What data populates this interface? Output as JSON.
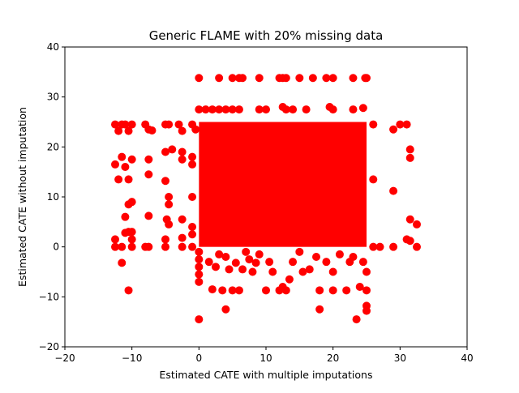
{
  "chart_data": {
    "type": "scatter",
    "title": "Generic FLAME with 20% missing data",
    "xlabel": "Estimated CATE with multiple imputations",
    "ylabel": "Estimated CATE without imputation",
    "xlim": [
      -20,
      40
    ],
    "ylim": [
      -20,
      40
    ],
    "xticks": [
      -20,
      -10,
      0,
      10,
      20,
      30,
      40
    ],
    "yticks": [
      -20,
      -10,
      0,
      10,
      20,
      30,
      40
    ],
    "xtick_labels": [
      "−20",
      "−10",
      "0",
      "10",
      "20",
      "30",
      "40"
    ],
    "ytick_labels": [
      "−20",
      "−10",
      "0",
      "10",
      "20",
      "30",
      "40"
    ],
    "grid": false,
    "legend": "none",
    "marker_color": "#ff0000",
    "dense_region": {
      "x": [
        0,
        25
      ],
      "y": [
        0,
        25
      ]
    },
    "series": [
      {
        "points": [
          [
            0,
            33.8
          ],
          [
            3,
            33.8
          ],
          [
            5,
            33.8
          ],
          [
            6,
            33.8
          ],
          [
            6.5,
            33.8
          ],
          [
            9,
            33.8
          ],
          [
            12,
            33.8
          ],
          [
            12.5,
            33.8
          ],
          [
            13,
            33.8
          ],
          [
            15,
            33.8
          ],
          [
            17,
            33.8
          ],
          [
            19,
            33.8
          ],
          [
            20,
            33.8
          ],
          [
            23,
            33.8
          ],
          [
            24.8,
            33.8
          ],
          [
            25,
            33.8
          ],
          [
            0,
            27.5
          ],
          [
            1,
            27.5
          ],
          [
            2,
            27.5
          ],
          [
            3,
            27.5
          ],
          [
            4,
            27.5
          ],
          [
            5,
            27.5
          ],
          [
            6,
            27.5
          ],
          [
            9,
            27.5
          ],
          [
            10,
            27.5
          ],
          [
            12.5,
            28
          ],
          [
            13,
            27.5
          ],
          [
            14,
            27.5
          ],
          [
            16,
            27.5
          ],
          [
            19.5,
            28
          ],
          [
            20,
            27.5
          ],
          [
            23,
            27.5
          ],
          [
            24.5,
            27.8
          ],
          [
            -12.5,
            24.5
          ],
          [
            -12,
            23.2
          ],
          [
            -11.5,
            24.5
          ],
          [
            -11,
            24.5
          ],
          [
            -10.5,
            23.2
          ],
          [
            -10,
            24.5
          ],
          [
            -8,
            24.5
          ],
          [
            -7.5,
            23.5
          ],
          [
            -7,
            23.3
          ],
          [
            -5,
            24.5
          ],
          [
            -4.5,
            24.5
          ],
          [
            -3,
            24.5
          ],
          [
            -2.5,
            23.2
          ],
          [
            -1,
            24.5
          ],
          [
            -0.5,
            23.5
          ],
          [
            26,
            24.5
          ],
          [
            29,
            23.5
          ],
          [
            30,
            24.5
          ],
          [
            31,
            24.5
          ],
          [
            -12.5,
            16.5
          ],
          [
            -12,
            13.5
          ],
          [
            -11.5,
            18
          ],
          [
            -11,
            16
          ],
          [
            -10.5,
            13.5
          ],
          [
            -10,
            17.5
          ],
          [
            -7.5,
            17.5
          ],
          [
            -7.5,
            14.5
          ],
          [
            -5,
            19
          ],
          [
            -5,
            13.2
          ],
          [
            -4,
            19.5
          ],
          [
            -2.5,
            19
          ],
          [
            -1,
            18
          ],
          [
            -1,
            16.5
          ],
          [
            -2.5,
            17.5
          ],
          [
            31.5,
            19.5
          ],
          [
            31.5,
            17.8
          ],
          [
            26,
            13.5
          ],
          [
            -10,
            9
          ],
          [
            -10.5,
            8.5
          ],
          [
            -4.5,
            10
          ],
          [
            -4.5,
            8.5
          ],
          [
            -1,
            10
          ],
          [
            29,
            11.2
          ],
          [
            -11,
            6
          ],
          [
            -7.5,
            6.2
          ],
          [
            -4.8,
            5.5
          ],
          [
            -4.5,
            4.5
          ],
          [
            -2.5,
            5.5
          ],
          [
            -1,
            4
          ],
          [
            31.5,
            5.5
          ],
          [
            32.5,
            4.5
          ],
          [
            -12.5,
            1.5
          ],
          [
            -12.5,
            0
          ],
          [
            -11.5,
            0
          ],
          [
            -11,
            2.8
          ],
          [
            -10.5,
            3
          ],
          [
            -10,
            1.5
          ],
          [
            -10,
            3
          ],
          [
            -10,
            0
          ],
          [
            -8,
            0
          ],
          [
            -7.5,
            0
          ],
          [
            -5,
            1.5
          ],
          [
            -5,
            0
          ],
          [
            -2.5,
            1.8
          ],
          [
            -2.5,
            0
          ],
          [
            -1,
            2.5
          ],
          [
            -1,
            0
          ],
          [
            26,
            0
          ],
          [
            27,
            0
          ],
          [
            29,
            0
          ],
          [
            31,
            1.5
          ],
          [
            31.5,
            1.2
          ],
          [
            32.5,
            0
          ],
          [
            -11.5,
            -3.2
          ],
          [
            -10.5,
            -8.7
          ],
          [
            0,
            -1
          ],
          [
            0,
            -2.5
          ],
          [
            0,
            -4
          ],
          [
            0,
            -5.5
          ],
          [
            0,
            -7
          ],
          [
            0,
            -14.5
          ],
          [
            1.5,
            -3
          ],
          [
            2,
            -8.5
          ],
          [
            2.5,
            -4
          ],
          [
            3,
            -1.5
          ],
          [
            3.5,
            -8.7
          ],
          [
            4,
            -12.5
          ],
          [
            4,
            -2
          ],
          [
            4.5,
            -4.5
          ],
          [
            5,
            -8.7
          ],
          [
            5.5,
            -3.2
          ],
          [
            6,
            -8.7
          ],
          [
            6.5,
            -4.5
          ],
          [
            7,
            -1
          ],
          [
            7.5,
            -2.5
          ],
          [
            8,
            -5
          ],
          [
            8.5,
            -3.2
          ],
          [
            9,
            -1.5
          ],
          [
            10,
            -8.7
          ],
          [
            10.5,
            -3
          ],
          [
            11,
            -5
          ],
          [
            12,
            -8.7
          ],
          [
            12.5,
            -8
          ],
          [
            13,
            -8.7
          ],
          [
            13.5,
            -6.5
          ],
          [
            14,
            -3
          ],
          [
            15,
            -1
          ],
          [
            15.5,
            -5
          ],
          [
            16.5,
            -4.5
          ],
          [
            17.5,
            -2
          ],
          [
            18,
            -8.7
          ],
          [
            18,
            -12.5
          ],
          [
            19,
            -3
          ],
          [
            20,
            -8.7
          ],
          [
            20,
            -5
          ],
          [
            21,
            -1.5
          ],
          [
            22,
            -8.7
          ],
          [
            22.5,
            -3
          ],
          [
            23,
            -2
          ],
          [
            23.5,
            -14.5
          ],
          [
            24,
            -8
          ],
          [
            24.5,
            -3
          ],
          [
            25,
            -8.7
          ],
          [
            25,
            -11.8
          ],
          [
            25,
            -12.8
          ],
          [
            25,
            -5
          ]
        ]
      }
    ]
  }
}
